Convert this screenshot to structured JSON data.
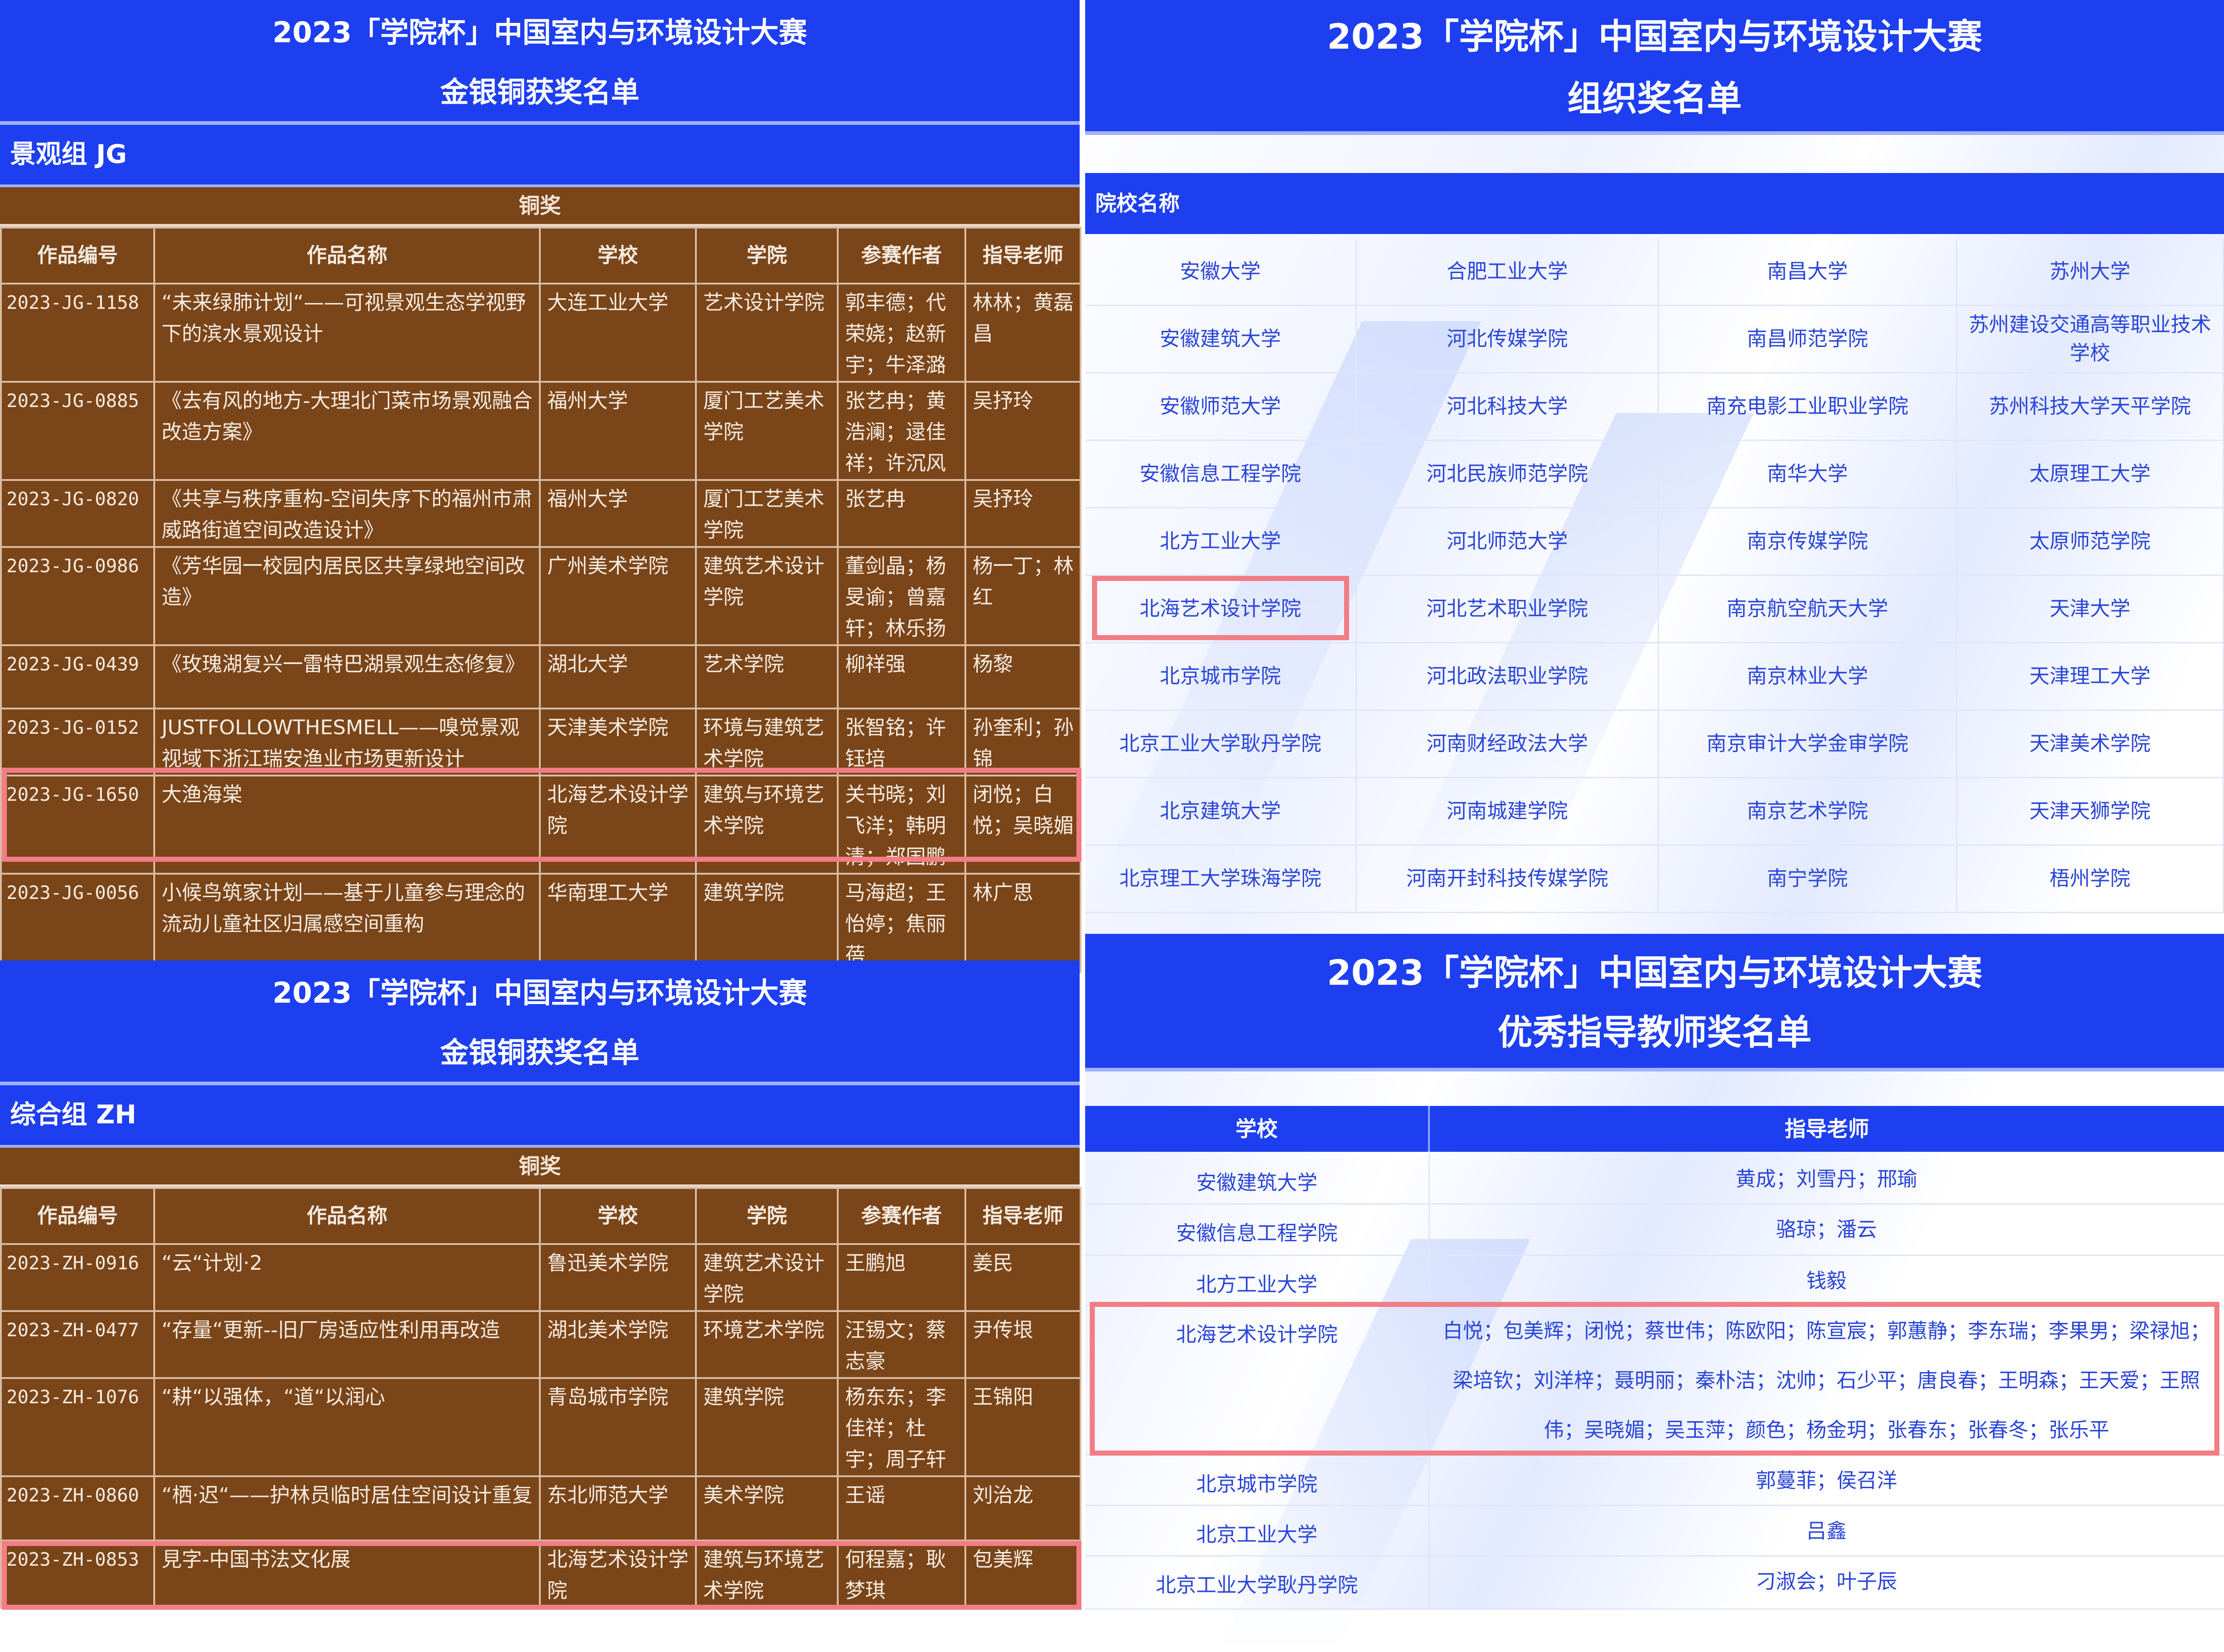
{
  "left": {
    "sections": [
      {
        "title": "2023「学院杯」中国室内与环境设计大赛",
        "subtitle": "金银铜获奖名单",
        "group": "景观组 JG",
        "award": "铜奖",
        "columns": [
          "作品编号",
          "作品名称",
          "学校",
          "学院",
          "参赛作者",
          "指导老师"
        ],
        "rows": [
          [
            "2023-JG-1158",
            "“未来绿肺计划“——可视景观生态学视野下的滨水景观设计",
            "大连工业大学",
            "艺术设计学院",
            "郭丰德；代荣娆；赵新宇；牛泽潞",
            "林林；黄磊昌"
          ],
          [
            "2023-JG-0885",
            "《去有风的地方-大理北门菜市场景观融合改造方案》",
            "福州大学",
            "厦门工艺美术学院",
            "张艺冉；黄浩澜；逯佳祥；许沉风",
            "吴抒玲"
          ],
          [
            "2023-JG-0820",
            "《共享与秩序重构-空间失序下的福州市肃威路街道空间改造设计》",
            "福州大学",
            "厦门工艺美术学院",
            "张艺冉",
            "吴抒玲"
          ],
          [
            "2023-JG-0986",
            "《芳华园一校园内居民区共享绿地空间改造》",
            "广州美术学院",
            "建筑艺术设计学院",
            "董剑晶；杨旻谕；曾嘉轩；林乐扬",
            "杨一丁；林红"
          ],
          [
            "2023-JG-0439",
            "《玫瑰湖复兴一雷特巴湖景观生态修复》",
            "湖北大学",
            "艺术学院",
            "柳祥强",
            "杨黎"
          ],
          [
            "2023-JG-0152",
            "JUSTFOLLOWTHESMELL——嗅觉景观视域下浙江瑞安渔业市场更新设计",
            "天津美术学院",
            "环境与建筑艺术学院",
            "张智铭；许钰培",
            "孙奎利；孙锦"
          ],
          [
            "2023-JG-1650",
            "大渔海棠",
            "北海艺术设计学院",
            "建筑与环境艺术学院",
            "关书晓；刘飞洋；韩明清；郑国鹏",
            "闭悦；白悦；吴晓媚"
          ],
          [
            "2023-JG-0056",
            "小候鸟筑家计划——基于儿童参与理念的流动儿童社区归属感空间重构",
            "华南理工大学",
            "建筑学院",
            "马海超；王怡婷；焦丽蓓",
            "林广思"
          ]
        ]
      },
      {
        "title": "2023「学院杯」中国室内与环境设计大赛",
        "subtitle": "金银铜获奖名单",
        "group": "综合组 ZH",
        "award": "铜奖",
        "columns": [
          "作品编号",
          "作品名称",
          "学校",
          "学院",
          "参赛作者",
          "指导老师"
        ],
        "rows": [
          [
            "2023-ZH-0916",
            "“云“计划·2",
            "鲁迅美术学院",
            "建筑艺术设计学院",
            "王鹏旭",
            "姜民"
          ],
          [
            "2023-ZH-0477",
            "“存量“更新--旧厂房适应性利用再改造",
            "湖北美术学院",
            "环境艺术学院",
            "汪锡文；蔡志豪",
            "尹传垠"
          ],
          [
            "2023-ZH-1076",
            "“耕“以强体，“道“以润心",
            "青岛城市学院",
            "建筑学院",
            "杨东东；李佳祥；杜宇；周子轩",
            "王锦阳"
          ],
          [
            "2023-ZH-0860",
            "“栖·迟“——护林员临时居住空间设计重复",
            "东北师范大学",
            "美术学院",
            "王谣",
            "刘治龙"
          ],
          [
            "2023-ZH-0853",
            "見字-中国书法文化展",
            "北海艺术设计学院",
            "建筑与环境艺术学院",
            "何程嘉；耿梦琪",
            "包美辉"
          ]
        ]
      }
    ]
  },
  "right": {
    "org": {
      "title": "2023「学院杯」中国室内与环境设计大赛",
      "subtitle": "组织奖名单",
      "column": "院校名称",
      "grid": [
        [
          "安徽大学",
          "合肥工业大学",
          "南昌大学",
          "苏州大学"
        ],
        [
          "安徽建筑大学",
          "河北传媒学院",
          "南昌师范学院",
          "苏州建设交通高等职业技术学校"
        ],
        [
          "安徽师范大学",
          "河北科技大学",
          "南充电影工业职业学院",
          "苏州科技大学天平学院"
        ],
        [
          "安徽信息工程学院",
          "河北民族师范学院",
          "南华大学",
          "太原理工大学"
        ],
        [
          "北方工业大学",
          "河北师范大学",
          "南京传媒学院",
          "太原师范学院"
        ],
        [
          "北海艺术设计学院",
          "河北艺术职业学院",
          "南京航空航天大学",
          "天津大学"
        ],
        [
          "北京城市学院",
          "河北政法职业学院",
          "南京林业大学",
          "天津理工大学"
        ],
        [
          "北京工业大学耿丹学院",
          "河南财经政法大学",
          "南京审计大学金审学院",
          "天津美术学院"
        ],
        [
          "北京建筑大学",
          "河南城建学院",
          "南京艺术学院",
          "天津天狮学院"
        ],
        [
          "北京理工大学珠海学院",
          "河南开封科技传媒学院",
          "南宁学院",
          "梧州学院"
        ]
      ]
    },
    "teachers": {
      "title": "2023「学院杯」中国室内与环境设计大赛",
      "subtitle": "优秀指导教师奖名单",
      "columns": [
        "学校",
        "指导老师"
      ],
      "rows": [
        [
          "安徽建筑大学",
          "黄成；刘雪丹；邢瑜"
        ],
        [
          "安徽信息工程学院",
          "骆琼；潘云"
        ],
        [
          "北方工业大学",
          "钱毅"
        ],
        [
          "北海艺术设计学院",
          "白悦；包美辉；闭悦；蔡世伟；陈欧阳；陈宣宸；郭蕙静；李东瑞；李果男；梁禄旭；梁培钦；刘洋梓；聂明丽；秦朴洁；沈帅；石少平；唐良春；王明森；王天爱；王照伟；吴晓媚；吴玉萍；颜色；杨金玥；张春东；张春冬；张乐平"
        ],
        [
          "北京城市学院",
          "郭蔓菲；侯召洋"
        ],
        [
          "北京工业大学",
          "吕鑫"
        ],
        [
          "北京工业大学耿丹学院",
          "刁淑会；叶子辰"
        ]
      ]
    }
  },
  "colors": {
    "header_blue": "#1d3ff0",
    "table_brown": "#7a4519",
    "highlight": "#f27d85",
    "school_text": "#2a45d8"
  }
}
